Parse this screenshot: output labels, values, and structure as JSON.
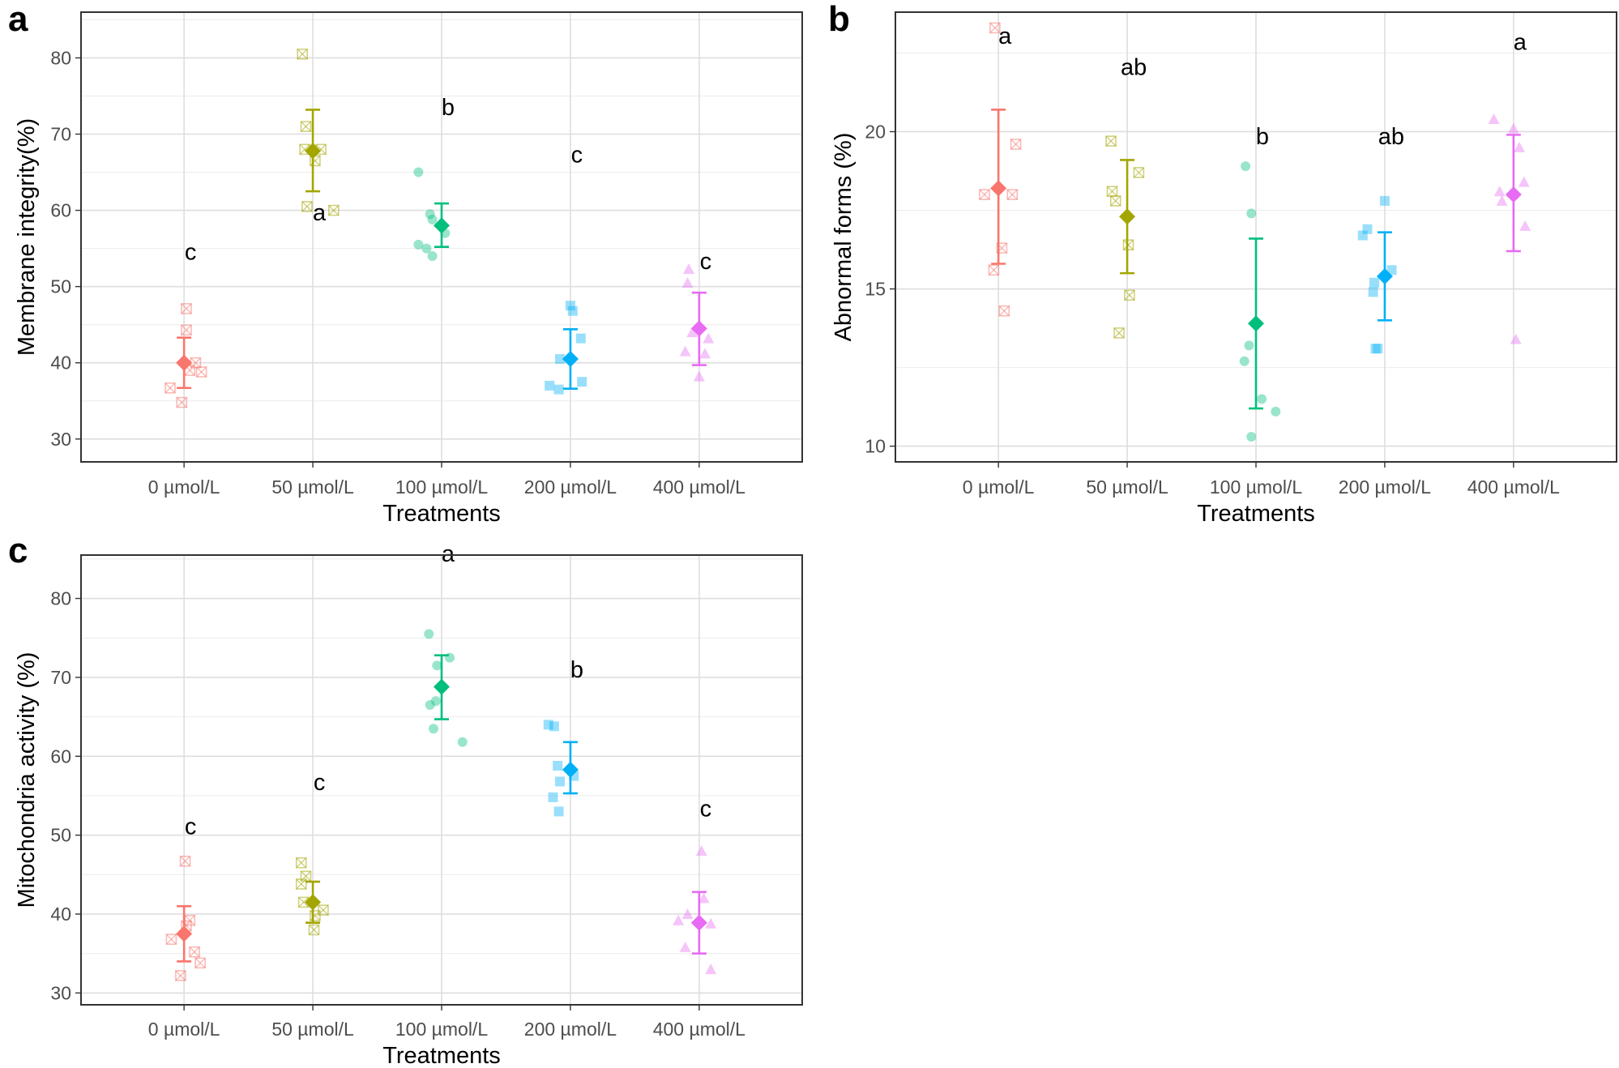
{
  "figure": {
    "colors": {
      "0 µmol/L": "#F8766D",
      "50 µmol/L": "#A3A500",
      "100 µmol/L": "#00BF7D",
      "200 µmol/L": "#00B0F6",
      "400 µmol/L": "#E76BF3"
    },
    "shapes": {
      "0 µmol/L": "square-x",
      "50 µmol/L": "square-x",
      "100 µmol/L": "circle",
      "200 µmol/L": "square",
      "400 µmol/L": "triangle"
    }
  },
  "chart_data": [
    {
      "panel": "a",
      "type": "scatter",
      "xlabel": "Treatments",
      "ylabel": "Membrane integrity(%)",
      "categories": [
        "0 µmol/L",
        "50 µmol/L",
        "100 µmol/L",
        "200 µmol/L",
        "400 µmol/L"
      ],
      "ylim": [
        27,
        86
      ],
      "yticks": [
        30,
        40,
        50,
        60,
        70,
        80
      ],
      "means": [
        40.0,
        67.8,
        58.0,
        40.5,
        44.5
      ],
      "error_low": [
        36.7,
        62.5,
        55.2,
        36.6,
        39.7
      ],
      "error_high": [
        43.3,
        73.2,
        60.9,
        44.4,
        49.2
      ],
      "letters": [
        "c",
        "a",
        "b",
        "c",
        "c"
      ],
      "letter_y": [
        53.5,
        58.7,
        72.5,
        66.3,
        52.3
      ],
      "points": [
        [
          {
            "dx": -0.12,
            "y": 36.7
          },
          {
            "dx": -0.02,
            "y": 34.8
          },
          {
            "dx": 0.02,
            "y": 47.1
          },
          {
            "dx": 0.02,
            "y": 44.3
          },
          {
            "dx": 0.05,
            "y": 39.0
          },
          {
            "dx": 0.1,
            "y": 40.0
          },
          {
            "dx": 0.15,
            "y": 38.8
          }
        ],
        [
          {
            "dx": -0.09,
            "y": 80.5
          },
          {
            "dx": -0.06,
            "y": 71.0
          },
          {
            "dx": -0.07,
            "y": 68.0
          },
          {
            "dx": -0.05,
            "y": 60.5
          },
          {
            "dx": 0.02,
            "y": 66.5
          },
          {
            "dx": 0.07,
            "y": 68.0
          },
          {
            "dx": 0.18,
            "y": 60.0
          }
        ],
        [
          {
            "dx": -0.2,
            "y": 65.0
          },
          {
            "dx": -0.2,
            "y": 55.5
          },
          {
            "dx": -0.13,
            "y": 55.0
          },
          {
            "dx": -0.1,
            "y": 59.5
          },
          {
            "dx": -0.08,
            "y": 58.8
          },
          {
            "dx": -0.08,
            "y": 54.0
          },
          {
            "dx": 0.03,
            "y": 57.0
          }
        ],
        [
          {
            "dx": -0.18,
            "y": 37.0
          },
          {
            "dx": -0.1,
            "y": 36.5
          },
          {
            "dx": -0.09,
            "y": 40.5
          },
          {
            "dx": 0.0,
            "y": 47.5
          },
          {
            "dx": 0.02,
            "y": 46.8
          },
          {
            "dx": 0.09,
            "y": 43.2
          },
          {
            "dx": 0.1,
            "y": 37.5
          }
        ],
        [
          {
            "dx": -0.12,
            "y": 41.5
          },
          {
            "dx": -0.1,
            "y": 50.5
          },
          {
            "dx": -0.09,
            "y": 52.3
          },
          {
            "dx": -0.06,
            "y": 44.0
          },
          {
            "dx": 0.0,
            "y": 38.2
          },
          {
            "dx": 0.05,
            "y": 41.2
          },
          {
            "dx": 0.08,
            "y": 43.2
          }
        ]
      ]
    },
    {
      "panel": "b",
      "type": "scatter",
      "xlabel": "Treatments",
      "ylabel": "Abnormal forms (%)",
      "categories": [
        "0 µmol/L",
        "50 µmol/L",
        "100 µmol/L",
        "200 µmol/L",
        "400 µmol/L"
      ],
      "ylim": [
        9.5,
        23.8
      ],
      "yticks": [
        10,
        15,
        20
      ],
      "means": [
        18.2,
        17.3,
        13.9,
        15.4,
        18.0
      ],
      "error_low": [
        15.8,
        15.5,
        11.2,
        14.0,
        16.2
      ],
      "error_high": [
        20.7,
        19.1,
        16.6,
        16.8,
        19.9
      ],
      "letters": [
        "a",
        "ab",
        "b",
        "ab",
        "a"
      ],
      "letter_y": [
        22.8,
        21.8,
        19.6,
        19.6,
        22.6
      ],
      "points": [
        [
          {
            "dx": -0.12,
            "y": 18.0
          },
          {
            "dx": -0.03,
            "y": 23.3
          },
          {
            "dx": -0.04,
            "y": 15.6
          },
          {
            "dx": 0.03,
            "y": 16.3
          },
          {
            "dx": 0.05,
            "y": 14.3
          },
          {
            "dx": 0.12,
            "y": 18.0
          },
          {
            "dx": 0.15,
            "y": 19.6
          }
        ],
        [
          {
            "dx": -0.14,
            "y": 19.7
          },
          {
            "dx": -0.13,
            "y": 18.1
          },
          {
            "dx": -0.1,
            "y": 17.8
          },
          {
            "dx": -0.07,
            "y": 13.6
          },
          {
            "dx": 0.01,
            "y": 16.4
          },
          {
            "dx": 0.02,
            "y": 14.8
          },
          {
            "dx": 0.1,
            "y": 18.7
          }
        ],
        [
          {
            "dx": -0.09,
            "y": 18.9
          },
          {
            "dx": -0.1,
            "y": 12.7
          },
          {
            "dx": -0.06,
            "y": 13.2
          },
          {
            "dx": -0.04,
            "y": 10.3
          },
          {
            "dx": -0.04,
            "y": 17.4
          },
          {
            "dx": 0.05,
            "y": 11.5
          },
          {
            "dx": 0.17,
            "y": 11.1
          }
        ],
        [
          {
            "dx": -0.19,
            "y": 16.7
          },
          {
            "dx": -0.15,
            "y": 16.9
          },
          {
            "dx": -0.1,
            "y": 14.9
          },
          {
            "dx": -0.08,
            "y": 13.1
          },
          {
            "dx": -0.06,
            "y": 13.1
          },
          {
            "dx": -0.09,
            "y": 15.2
          },
          {
            "dx": 0.0,
            "y": 17.8
          },
          {
            "dx": 0.06,
            "y": 15.6
          }
        ],
        [
          {
            "dx": -0.17,
            "y": 20.4
          },
          {
            "dx": -0.12,
            "y": 18.1
          },
          {
            "dx": -0.1,
            "y": 17.8
          },
          {
            "dx": 0.0,
            "y": 20.1
          },
          {
            "dx": 0.02,
            "y": 13.4
          },
          {
            "dx": 0.05,
            "y": 19.5
          },
          {
            "dx": 0.09,
            "y": 18.4
          },
          {
            "dx": 0.1,
            "y": 17.0
          }
        ]
      ]
    },
    {
      "panel": "c",
      "type": "scatter",
      "xlabel": "Treatments",
      "ylabel": "Mitochondria activity (%)",
      "categories": [
        "0 µmol/L",
        "50 µmol/L",
        "100 µmol/L",
        "200 µmol/L",
        "400 µmol/L"
      ],
      "ylim": [
        28.5,
        85.5
      ],
      "yticks": [
        30,
        40,
        50,
        60,
        70,
        80
      ],
      "means": [
        37.5,
        41.5,
        68.8,
        58.3,
        38.9
      ],
      "error_low": [
        34.0,
        38.9,
        64.7,
        55.3,
        35.0
      ],
      "error_high": [
        41.0,
        44.1,
        72.8,
        61.8,
        42.8
      ],
      "letters": [
        "c",
        "c",
        "a",
        "b",
        "c"
      ],
      "letter_y": [
        50.1,
        55.7,
        84.7,
        70.0,
        52.4
      ],
      "points": [
        [
          {
            "dx": -0.11,
            "y": 36.8
          },
          {
            "dx": -0.03,
            "y": 32.2
          },
          {
            "dx": 0.01,
            "y": 46.7
          },
          {
            "dx": 0.02,
            "y": 38.5
          },
          {
            "dx": 0.05,
            "y": 39.2
          },
          {
            "dx": 0.09,
            "y": 35.2
          },
          {
            "dx": 0.14,
            "y": 33.8
          }
        ],
        [
          {
            "dx": -0.1,
            "y": 46.5
          },
          {
            "dx": -0.1,
            "y": 43.8
          },
          {
            "dx": -0.08,
            "y": 41.5
          },
          {
            "dx": -0.06,
            "y": 44.8
          },
          {
            "dx": 0.01,
            "y": 38.0
          },
          {
            "dx": 0.02,
            "y": 39.8
          },
          {
            "dx": 0.09,
            "y": 40.5
          }
        ],
        [
          {
            "dx": -0.11,
            "y": 75.5
          },
          {
            "dx": -0.1,
            "y": 66.5
          },
          {
            "dx": -0.07,
            "y": 63.5
          },
          {
            "dx": -0.05,
            "y": 67.0
          },
          {
            "dx": -0.04,
            "y": 71.5
          },
          {
            "dx": 0.07,
            "y": 72.5
          },
          {
            "dx": 0.18,
            "y": 61.8
          }
        ],
        [
          {
            "dx": -0.19,
            "y": 64.0
          },
          {
            "dx": -0.14,
            "y": 63.8
          },
          {
            "dx": -0.15,
            "y": 54.8
          },
          {
            "dx": -0.11,
            "y": 58.8
          },
          {
            "dx": -0.09,
            "y": 56.8
          },
          {
            "dx": -0.1,
            "y": 53.0
          },
          {
            "dx": 0.03,
            "y": 57.5
          }
        ],
        [
          {
            "dx": -0.18,
            "y": 39.2
          },
          {
            "dx": -0.1,
            "y": 40.0
          },
          {
            "dx": -0.12,
            "y": 35.8
          },
          {
            "dx": 0.02,
            "y": 48.0
          },
          {
            "dx": 0.04,
            "y": 42.0
          },
          {
            "dx": 0.1,
            "y": 33.0
          },
          {
            "dx": 0.1,
            "y": 38.8
          }
        ]
      ]
    }
  ]
}
